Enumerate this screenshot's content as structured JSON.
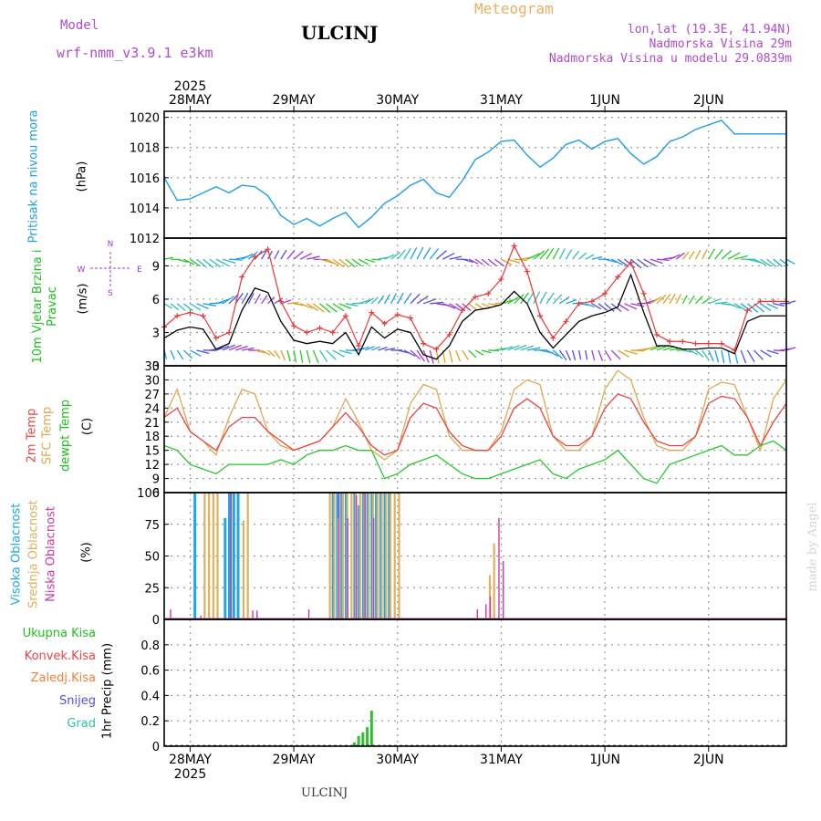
{
  "header": {
    "model_label": "Model",
    "model_name": "wrf-nmm_v3.9.1  e3km",
    "station": "ULCINJ",
    "product": "Meteogram",
    "coords": "lon,lat (19.3E, 41.94N)",
    "elevation": "Nadmorska Visina 29m",
    "model_elevation": "Nadmorska Visina u modelu 29.0839m"
  },
  "footer": {
    "station": "ULCINJ",
    "credit": "made by Angel"
  },
  "colors": {
    "pressure": "#1e9ee8",
    "wind_speed": "#000000",
    "gust": "#e83a3a",
    "temp2m": "#e84646",
    "sfc": "#e0a850",
    "dew": "#2ac82a",
    "high_cloud": "#1ea6e8",
    "mid_cloud": "#e0b060",
    "low_cloud": "#c83aa8",
    "precip": "#32be32",
    "conv": "#e83a3a",
    "snow": "#5050e0"
  },
  "chart_data": [
    {
      "type": "line",
      "panel": "pressure",
      "title": "Pritisak na nivou mora",
      "ylabel": "(hPa)",
      "ylim": [
        1012,
        1020.4
      ],
      "yticks": [
        1012,
        1014,
        1016,
        1018,
        1020
      ],
      "series": [
        {
          "name": "MSLP",
          "x": [
            0,
            3,
            6,
            9,
            12,
            15,
            18,
            21,
            24,
            27,
            30,
            33,
            36,
            39,
            42,
            45,
            48,
            51,
            54,
            57,
            60,
            63,
            66,
            69,
            72,
            75,
            78,
            81,
            84,
            87,
            90,
            93,
            96,
            99,
            102,
            105,
            108,
            111,
            114,
            117,
            120,
            123,
            126,
            129,
            132,
            135,
            138,
            141,
            144
          ],
          "values": [
            1016.0,
            1014.5,
            1014.6,
            1015.0,
            1015.4,
            1015.0,
            1015.5,
            1015.4,
            1014.8,
            1013.5,
            1012.9,
            1013.3,
            1012.8,
            1013.3,
            1013.7,
            1012.7,
            1013.4,
            1014.3,
            1014.8,
            1015.5,
            1015.9,
            1015.0,
            1014.7,
            1015.8,
            1017.2,
            1017.7,
            1018.4,
            1018.5,
            1017.5,
            1016.7,
            1017.3,
            1018.2,
            1018.5,
            1017.9,
            1018.4,
            1018.6,
            1017.6,
            1016.9,
            1017.4,
            1018.4,
            1018.7,
            1019.2,
            1019.5,
            1019.8,
            1018.9,
            1018.9,
            1018.9,
            1018.9,
            1018.9
          ]
        }
      ]
    },
    {
      "type": "line",
      "panel": "wind",
      "title": "10m Vjetar Brzina i Pravac",
      "ylabel": "(m/s)",
      "ylim": [
        0,
        11.5
      ],
      "yticks": [
        0,
        3,
        6,
        9
      ],
      "compass": {
        "n": "N",
        "e": "E",
        "s": "S",
        "w": "W"
      },
      "series": [
        {
          "name": "Speed",
          "x": [
            0,
            3,
            6,
            9,
            12,
            15,
            18,
            21,
            24,
            27,
            30,
            33,
            36,
            39,
            42,
            45,
            48,
            51,
            54,
            57,
            60,
            63,
            66,
            69,
            72,
            75,
            78,
            81,
            84,
            87,
            90,
            93,
            96,
            99,
            102,
            105,
            108,
            111,
            114,
            117,
            120,
            123,
            126,
            129,
            132,
            135,
            138,
            141,
            144
          ],
          "values": [
            2.5,
            3.2,
            3.5,
            3.3,
            1.5,
            2.0,
            5.0,
            7.0,
            6.6,
            4.0,
            2.3,
            2.0,
            2.2,
            2.0,
            3.0,
            1.0,
            3.5,
            2.5,
            3.3,
            3.0,
            1.0,
            0.6,
            1.8,
            4.0,
            5.0,
            5.2,
            5.5,
            6.7,
            5.6,
            3.0,
            1.6,
            2.8,
            4.0,
            4.5,
            4.8,
            5.3,
            8.2,
            4.8,
            1.8,
            1.8,
            1.5,
            1.5,
            1.6,
            1.6,
            1.1,
            4.0,
            4.5,
            4.5,
            4.5
          ]
        },
        {
          "name": "Gust",
          "x": [
            0,
            3,
            6,
            9,
            12,
            15,
            18,
            21,
            24,
            27,
            30,
            33,
            36,
            39,
            42,
            45,
            48,
            51,
            54,
            57,
            60,
            63,
            66,
            69,
            72,
            75,
            78,
            81,
            84,
            87,
            90,
            93,
            96,
            99,
            102,
            105,
            108,
            111,
            114,
            117,
            120,
            123,
            126,
            129,
            132,
            135,
            138,
            141,
            144
          ],
          "values": [
            3.5,
            4.5,
            4.8,
            4.5,
            2.5,
            3.0,
            8.0,
            9.8,
            10.5,
            5.8,
            3.6,
            3.0,
            3.4,
            3.0,
            4.5,
            1.8,
            4.8,
            3.8,
            4.6,
            4.3,
            2.0,
            1.5,
            2.8,
            5.0,
            6.2,
            6.5,
            7.8,
            10.8,
            8.5,
            4.5,
            2.5,
            4.0,
            5.6,
            5.8,
            6.5,
            8.0,
            9.3,
            6.5,
            2.8,
            2.2,
            2.2,
            2.0,
            2.0,
            2.0,
            1.4,
            5.0,
            5.8,
            5.8,
            5.8
          ]
        }
      ]
    },
    {
      "type": "line",
      "panel": "temperature",
      "labels": [
        "2m Temp",
        "SFC Temp",
        "dewpt Temp"
      ],
      "ylabel": "(C)",
      "ylim": [
        6,
        33
      ],
      "yticks": [
        6,
        9,
        12,
        15,
        18,
        21,
        24,
        27,
        30,
        33
      ],
      "series": [
        {
          "name": "2m Temp",
          "x": [
            0,
            3,
            6,
            9,
            12,
            15,
            18,
            21,
            24,
            27,
            30,
            33,
            36,
            39,
            42,
            45,
            48,
            51,
            54,
            57,
            60,
            63,
            66,
            69,
            72,
            75,
            78,
            81,
            84,
            87,
            90,
            93,
            96,
            99,
            102,
            105,
            108,
            111,
            114,
            117,
            120,
            123,
            126,
            129,
            132,
            135,
            138,
            141,
            144
          ],
          "values": [
            22,
            24,
            19,
            17,
            15,
            20,
            22,
            22,
            19,
            17,
            15,
            16,
            17,
            20,
            23,
            20,
            16,
            14,
            15,
            22,
            25,
            24,
            19,
            16,
            15,
            15,
            18,
            24,
            26,
            24,
            18,
            16,
            16,
            18,
            24,
            27,
            26,
            21,
            17,
            16,
            16,
            18,
            25,
            26.5,
            26,
            22,
            16,
            21,
            25
          ]
        },
        {
          "name": "SFC Temp",
          "x": [
            0,
            3,
            6,
            9,
            12,
            15,
            18,
            21,
            24,
            27,
            30,
            33,
            36,
            39,
            42,
            45,
            48,
            51,
            54,
            57,
            60,
            63,
            66,
            69,
            72,
            75,
            78,
            81,
            84,
            87,
            90,
            93,
            96,
            99,
            102,
            105,
            108,
            111,
            114,
            117,
            120,
            123,
            126,
            129,
            132,
            135,
            138,
            141,
            144
          ],
          "values": [
            22,
            28,
            19,
            17,
            14,
            22,
            28,
            27,
            19,
            16,
            15,
            16,
            17,
            20,
            26,
            21,
            15,
            13,
            15,
            25,
            29,
            28,
            18,
            15,
            15,
            15,
            19,
            28,
            30,
            29,
            18,
            15,
            15,
            18,
            28,
            32,
            30,
            22,
            16,
            15,
            15,
            18,
            28,
            29.5,
            29,
            22,
            15,
            26,
            30
          ]
        },
        {
          "name": "Dewpoint",
          "x": [
            0,
            3,
            6,
            9,
            12,
            15,
            18,
            21,
            24,
            27,
            30,
            33,
            36,
            39,
            42,
            45,
            48,
            51,
            54,
            57,
            60,
            63,
            66,
            69,
            72,
            75,
            78,
            81,
            84,
            87,
            90,
            93,
            96,
            99,
            102,
            105,
            108,
            111,
            114,
            117,
            120,
            123,
            126,
            129,
            132,
            135,
            138,
            141,
            144
          ],
          "values": [
            16,
            15,
            12,
            11,
            10,
            12,
            12,
            12,
            12,
            13,
            12,
            14,
            15,
            15,
            16,
            15,
            15,
            9,
            10,
            12,
            13,
            14,
            12,
            10,
            9,
            9,
            10,
            11,
            12,
            13,
            10,
            9,
            11,
            12,
            13,
            15,
            12,
            9,
            8,
            12,
            13,
            14,
            15,
            16,
            14,
            14,
            16,
            17,
            15
          ]
        }
      ]
    },
    {
      "type": "bar",
      "panel": "clouds",
      "labels": [
        "Visoka Oblacnost",
        "Srednja Oblacnost",
        "Niska Oblacnost"
      ],
      "ylabel": "(%)",
      "ylim": [
        0,
        100
      ],
      "yticks": [
        0,
        25,
        50,
        75,
        100
      ],
      "series": [
        {
          "name": "High",
          "x": [
            7,
            14,
            15,
            16,
            17,
            39,
            40,
            41,
            42,
            44,
            45,
            46,
            47,
            48,
            49,
            50,
            51,
            52
          ],
          "values": [
            100,
            80,
            100,
            100,
            100,
            100,
            100,
            100,
            100,
            100,
            90,
            100,
            100,
            100,
            100,
            100,
            100,
            100
          ]
        },
        {
          "name": "Mid",
          "x": [
            9,
            10,
            11,
            12,
            18,
            19,
            38,
            39,
            40,
            41,
            42,
            43,
            44,
            45,
            46,
            47,
            48,
            49,
            50,
            51,
            52,
            53,
            54,
            75,
            76
          ],
          "values": [
            100,
            100,
            100,
            100,
            78,
            100,
            100,
            100,
            80,
            100,
            100,
            100,
            100,
            100,
            100,
            100,
            100,
            100,
            100,
            100,
            100,
            100,
            100,
            35,
            60
          ]
        },
        {
          "name": "Low",
          "x": [
            1,
            8,
            15,
            20,
            21,
            33,
            40,
            42,
            44,
            46,
            48,
            72,
            74,
            75,
            77,
            78
          ],
          "values": [
            8,
            3,
            100,
            7,
            7,
            8,
            100,
            80,
            98,
            100,
            80,
            8,
            12,
            18,
            80,
            46
          ]
        }
      ]
    },
    {
      "type": "bar",
      "panel": "precip",
      "labels": [
        "Ukupna Kisa",
        "Konvek.Kisa",
        "Zaledj.Kisa",
        "Snijeg",
        "Grad"
      ],
      "ylabel": "1hr Precip (mm)",
      "ylim": [
        0,
        1.0
      ],
      "yticks": [
        0,
        0.2,
        0.4,
        0.6,
        0.8
      ],
      "series": [
        {
          "name": "Total",
          "x": [
            44,
            45,
            46,
            47,
            48
          ],
          "values": [
            0.03,
            0.08,
            0.11,
            0.15,
            0.28
          ]
        },
        {
          "name": "Convective",
          "x": [
            73
          ],
          "values": [
            0.01
          ]
        }
      ]
    }
  ],
  "time_axis": {
    "hours": 144,
    "day_offsets_h": [
      6,
      30,
      54,
      78,
      102,
      126
    ],
    "day_labels": [
      "28MAY",
      "29MAY",
      "30MAY",
      "31MAY",
      "1JUN",
      "2JUN"
    ],
    "year_label": "2025"
  }
}
